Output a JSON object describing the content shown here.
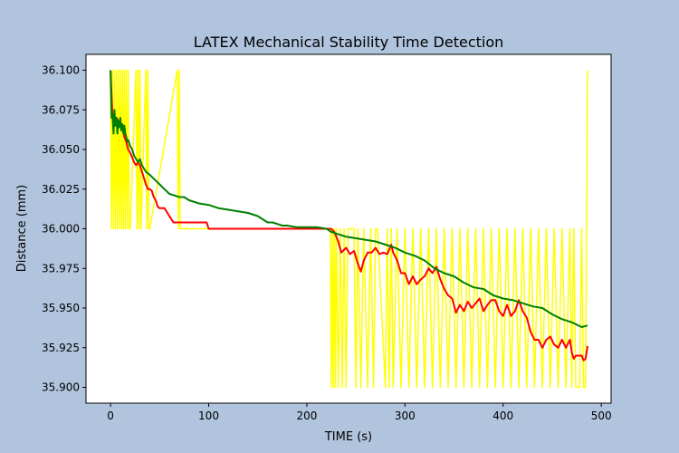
{
  "chart_data": {
    "type": "line",
    "title": "LATEX Mechanical Stability Time Detection",
    "xlabel": "TIME (s)",
    "ylabel": "Distance (mm)",
    "xlim": [
      -25,
      510
    ],
    "ylim": [
      35.89,
      36.11
    ],
    "x_ticks": [
      0,
      100,
      200,
      300,
      400,
      500
    ],
    "y_ticks": [
      35.9,
      35.925,
      35.95,
      35.975,
      36.0,
      36.025,
      36.05,
      36.075,
      36.1
    ],
    "x_tick_labels": [
      "0",
      "100",
      "200",
      "300",
      "400",
      "500"
    ],
    "y_tick_labels": [
      "35.900",
      "35.925",
      "35.950",
      "35.975",
      "36.000",
      "36.025",
      "36.050",
      "36.075",
      "36.100"
    ],
    "grid": false,
    "colors": {
      "background": "#b0c4de",
      "plot_area": "#ffffff",
      "yellow_series": "#ffff00",
      "red_series": "#ff0000",
      "green_series": "#008000"
    },
    "series": [
      {
        "color": "#ffff00",
        "x": [
          0,
          1,
          2,
          3,
          4,
          5,
          6,
          7,
          8,
          9,
          10,
          11,
          12,
          13,
          14,
          15,
          16,
          17,
          18,
          19,
          20,
          26,
          27,
          28,
          29,
          30,
          31,
          36,
          37,
          38,
          39,
          40,
          68,
          69,
          70,
          71,
          72,
          224,
          225,
          226,
          227,
          228,
          229,
          230,
          232,
          234,
          236,
          238,
          240,
          242,
          248,
          250,
          252,
          255,
          258,
          262,
          265,
          268,
          270,
          272,
          280,
          282,
          284,
          286,
          288,
          292,
          296,
          300,
          304,
          308,
          312,
          316,
          320,
          324,
          328,
          332,
          336,
          340,
          344,
          348,
          352,
          356,
          360,
          364,
          368,
          372,
          376,
          380,
          384,
          388,
          392,
          396,
          400,
          404,
          408,
          412,
          416,
          420,
          424,
          428,
          432,
          436,
          440,
          444,
          448,
          452,
          456,
          460,
          464,
          468,
          470,
          472,
          474,
          476,
          478,
          480,
          482,
          484,
          486
        ],
        "y": [
          36.1,
          36.0,
          36.1,
          36.0,
          36.1,
          36.0,
          36.1,
          36.0,
          36.1,
          36.0,
          36.1,
          36.0,
          36.1,
          36.0,
          36.1,
          36.0,
          36.1,
          36.0,
          36.1,
          36.0,
          36.0,
          36.1,
          36.0,
          36.1,
          36.0,
          36.1,
          36.0,
          36.1,
          36.0,
          36.1,
          36.0,
          36.0,
          36.1,
          36.0,
          36.1,
          36.0,
          36.0,
          36.0,
          35.9,
          36.0,
          35.9,
          36.0,
          35.9,
          36.0,
          35.9,
          36.0,
          35.9,
          36.0,
          35.9,
          36.0,
          36.0,
          35.9,
          36.0,
          35.9,
          36.0,
          35.9,
          36.0,
          35.9,
          36.0,
          36.0,
          35.9,
          36.0,
          35.9,
          36.0,
          35.9,
          36.0,
          35.9,
          36.0,
          35.9,
          36.0,
          35.9,
          36.0,
          35.9,
          36.0,
          35.9,
          36.0,
          35.9,
          36.0,
          35.9,
          36.0,
          35.9,
          36.0,
          35.9,
          36.0,
          35.9,
          36.0,
          35.9,
          36.0,
          35.9,
          36.0,
          35.9,
          36.0,
          35.9,
          36.0,
          35.9,
          36.0,
          35.9,
          36.0,
          35.9,
          36.0,
          35.9,
          36.0,
          35.9,
          36.0,
          35.9,
          36.0,
          35.9,
          36.0,
          35.9,
          36.0,
          35.9,
          36.0,
          35.9,
          35.9,
          35.9,
          36.0,
          35.9,
          35.9,
          36.1
        ]
      },
      {
        "color": "#ff0000",
        "x": [
          0,
          2,
          4,
          6,
          8,
          10,
          12,
          14,
          16,
          18,
          20,
          22,
          24,
          26,
          28,
          30,
          32,
          34,
          36,
          38,
          40,
          42,
          44,
          46,
          48,
          50,
          55,
          60,
          62,
          64,
          68,
          70,
          75,
          80,
          90,
          98,
          100,
          120,
          150,
          180,
          200,
          220,
          225,
          228,
          232,
          235,
          240,
          244,
          248,
          252,
          255,
          258,
          262,
          266,
          270,
          274,
          278,
          282,
          286,
          288,
          292,
          296,
          300,
          304,
          308,
          312,
          316,
          320,
          324,
          328,
          332,
          336,
          340,
          344,
          348,
          352,
          356,
          360,
          364,
          368,
          372,
          376,
          380,
          384,
          388,
          392,
          396,
          400,
          404,
          408,
          412,
          416,
          420,
          424,
          428,
          432,
          436,
          440,
          444,
          448,
          452,
          456,
          460,
          464,
          468,
          470,
          472,
          474,
          476,
          480,
          482,
          484,
          486
        ],
        "y": [
          36.1,
          36.07,
          36.065,
          36.07,
          36.068,
          36.065,
          36.066,
          36.058,
          36.055,
          36.05,
          36.048,
          36.045,
          36.042,
          36.04,
          36.042,
          36.04,
          36.036,
          36.032,
          36.028,
          36.025,
          36.025,
          36.024,
          36.02,
          36.018,
          36.014,
          36.013,
          36.013,
          36.008,
          36.006,
          36.004,
          36.004,
          36.004,
          36.004,
          36.004,
          36.004,
          36.004,
          36.0,
          36.0,
          36.0,
          36.0,
          36.0,
          36.0,
          36.0,
          35.998,
          35.992,
          35.985,
          35.988,
          35.984,
          35.986,
          35.978,
          35.973,
          35.98,
          35.985,
          35.985,
          35.988,
          35.984,
          35.985,
          35.984,
          35.99,
          35.985,
          35.98,
          35.972,
          35.972,
          35.965,
          35.97,
          35.965,
          35.968,
          35.97,
          35.975,
          35.972,
          35.976,
          35.968,
          35.962,
          35.958,
          35.956,
          35.947,
          35.952,
          35.948,
          35.954,
          35.95,
          35.953,
          35.956,
          35.948,
          35.952,
          35.955,
          35.955,
          35.948,
          35.945,
          35.952,
          35.945,
          35.948,
          35.955,
          35.948,
          35.944,
          35.935,
          35.93,
          35.93,
          35.925,
          35.93,
          35.932,
          35.927,
          35.925,
          35.93,
          35.925,
          35.93,
          35.922,
          35.918,
          35.92,
          35.92,
          35.92,
          35.917,
          35.918,
          35.926
        ]
      },
      {
        "color": "#008000",
        "x": [
          0,
          1,
          2,
          3,
          4,
          5,
          6,
          7,
          8,
          9,
          10,
          11,
          12,
          13,
          14,
          15,
          16,
          17,
          18,
          19,
          20,
          22,
          24,
          26,
          28,
          30,
          32,
          34,
          36,
          38,
          40,
          45,
          50,
          55,
          60,
          65,
          70,
          75,
          80,
          90,
          100,
          110,
          120,
          130,
          140,
          150,
          155,
          160,
          165,
          170,
          175,
          180,
          190,
          200,
          210,
          220,
          225,
          230,
          240,
          250,
          260,
          270,
          280,
          290,
          300,
          310,
          320,
          330,
          340,
          350,
          360,
          370,
          380,
          390,
          400,
          410,
          420,
          430,
          440,
          450,
          460,
          470,
          480,
          486
        ],
        "y": [
          36.1,
          36.07,
          36.072,
          36.06,
          36.075,
          36.065,
          36.07,
          36.06,
          36.068,
          36.064,
          36.07,
          36.062,
          36.066,
          36.06,
          36.065,
          36.06,
          36.058,
          36.055,
          36.056,
          36.054,
          36.052,
          36.05,
          36.046,
          36.044,
          36.042,
          36.044,
          36.04,
          36.038,
          36.036,
          36.035,
          36.034,
          36.031,
          36.028,
          36.025,
          36.022,
          36.021,
          36.02,
          36.02,
          36.018,
          36.016,
          36.015,
          36.013,
          36.012,
          36.011,
          36.01,
          36.008,
          36.006,
          36.004,
          36.004,
          36.003,
          36.002,
          36.002,
          36.001,
          36.001,
          36.001,
          36.0,
          35.998,
          35.997,
          35.995,
          35.994,
          35.993,
          35.992,
          35.99,
          35.988,
          35.985,
          35.983,
          35.98,
          35.975,
          35.972,
          35.97,
          35.966,
          35.963,
          35.962,
          35.958,
          35.956,
          35.955,
          35.953,
          35.951,
          35.95,
          35.946,
          35.943,
          35.941,
          35.938,
          35.939
        ]
      }
    ]
  }
}
